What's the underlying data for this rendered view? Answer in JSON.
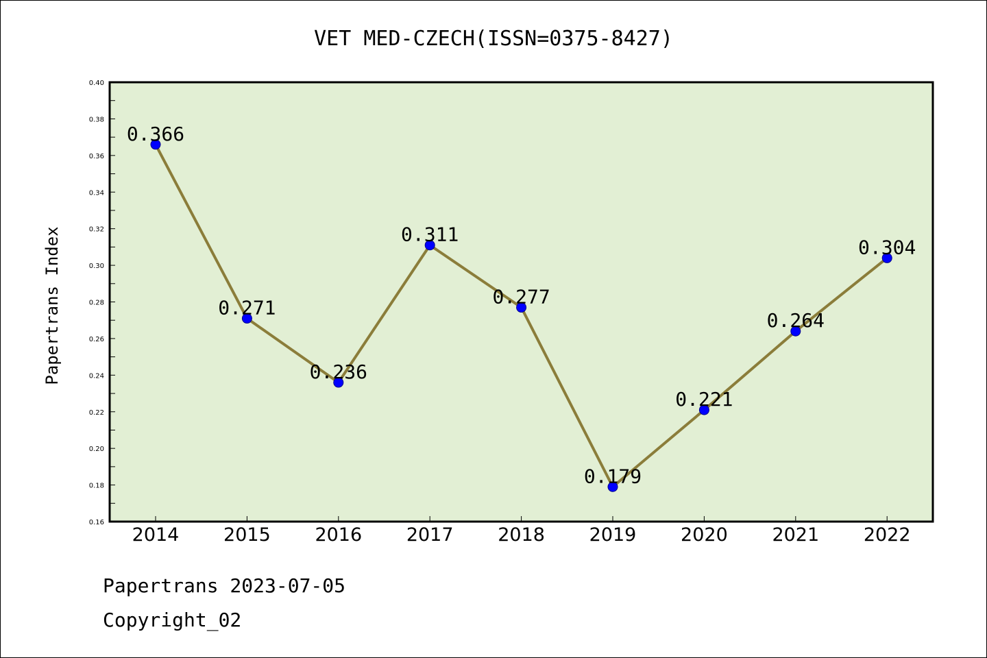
{
  "chart_data": {
    "type": "line",
    "title": "VET MED-CZECH(ISSN=0375-8427)",
    "xlabel": "",
    "ylabel": "Papertrans Index",
    "categories": [
      "2014",
      "2015",
      "2016",
      "2017",
      "2018",
      "2019",
      "2020",
      "2021",
      "2022"
    ],
    "series": [
      {
        "values": [
          0.366,
          0.271,
          0.236,
          0.311,
          0.277,
          0.179,
          0.221,
          0.264,
          0.304
        ],
        "data_labels": [
          "0.366",
          "0.271",
          "0.236",
          "0.311",
          "0.277",
          "0.179",
          "0.221",
          "0.264",
          "0.304"
        ]
      }
    ],
    "yticks": [
      "0.16",
      "0.18",
      "0.20",
      "0.22",
      "0.24",
      "0.26",
      "0.28",
      "0.30",
      "0.32",
      "0.34",
      "0.36",
      "0.38",
      "0.40"
    ],
    "ylim": [
      0.16,
      0.4
    ],
    "grid": false,
    "colors": {
      "plot_background": "#e2efd4",
      "line": "#8b7d3a",
      "marker": "#0000ff"
    }
  },
  "footer": {
    "line1": "Papertrans 2023-07-05",
    "line2": "Copyright_02"
  }
}
